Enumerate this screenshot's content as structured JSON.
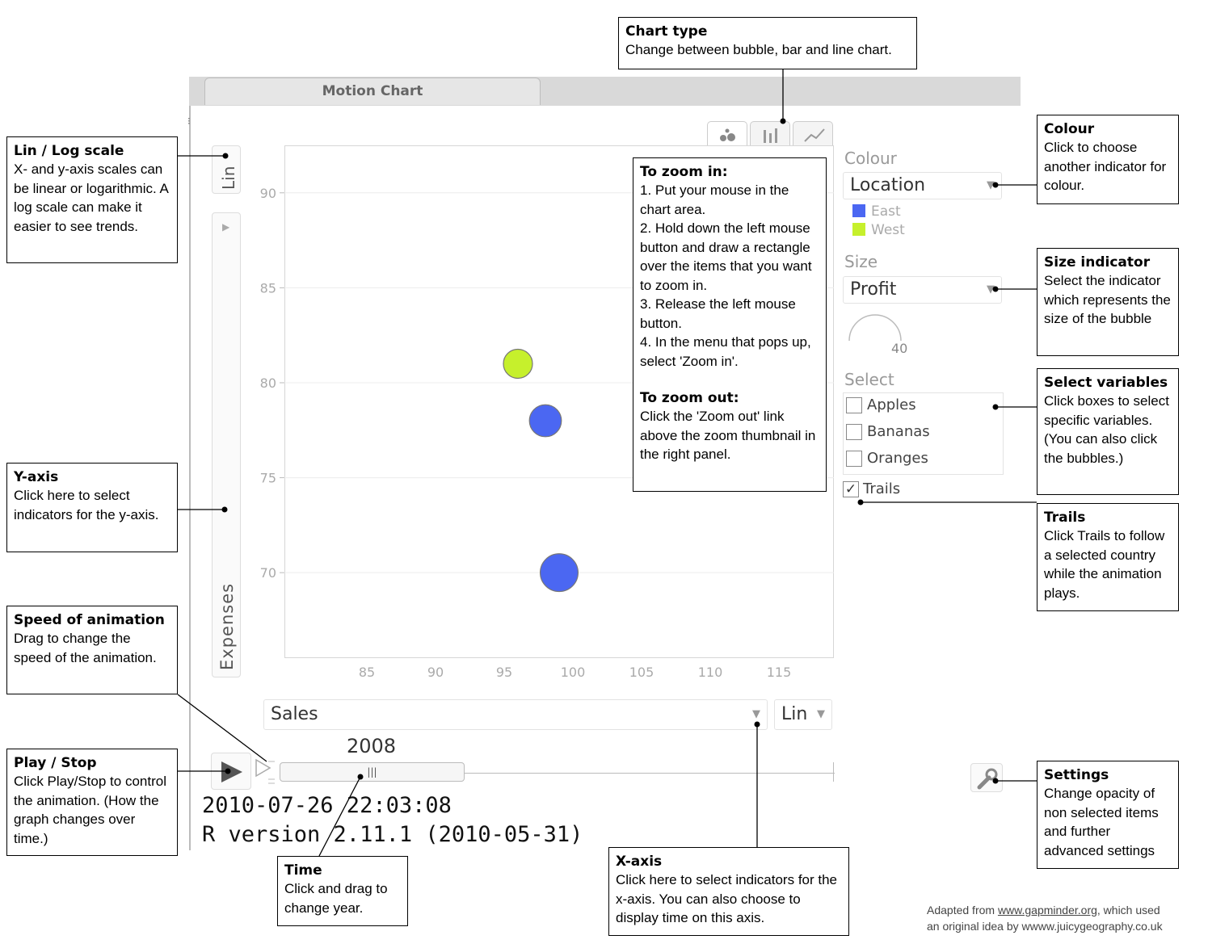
{
  "chart": {
    "tab_title": "Motion Chart",
    "y_scale": "Lin",
    "y_indicator": "Expenses",
    "x_indicator": "Sales",
    "x_scale": "Lin",
    "year": "2008",
    "timestamp": "2010-07-26 22:03:08",
    "r_version": "R version 2.11.1 (2010-05-31)"
  },
  "chart_data": {
    "type": "scatter",
    "x": [
      96,
      98,
      99
    ],
    "y": [
      81,
      78,
      70
    ],
    "colors": [
      "#c6f02c",
      "#4b67f2",
      "#4b67f2"
    ],
    "sizes": [
      1.0,
      1.1,
      1.3
    ],
    "xlim": [
      79,
      119
    ],
    "ylim": [
      65.5,
      92.5
    ],
    "x_ticks": [
      "85",
      "90",
      "95",
      "100",
      "105",
      "110",
      "115"
    ],
    "y_ticks": [
      "90",
      "85",
      "80",
      "75",
      "70"
    ],
    "ylabel": "Expenses",
    "xlabel": "Sales",
    "grid": true
  },
  "panel": {
    "colour_label": "Colour",
    "colour_value": "Location",
    "legend": [
      {
        "name": "East",
        "color": "#4b67f2"
      },
      {
        "name": "West",
        "color": "#c6f02c"
      }
    ],
    "size_label": "Size",
    "size_value": "Profit",
    "size_gauge_value": "40",
    "select_label": "Select",
    "select_items": [
      "Apples",
      "Bananas",
      "Oranges"
    ],
    "trails_label": "Trails",
    "trails_checked": "✓"
  },
  "callouts": {
    "chart_type": {
      "title": "Chart type",
      "body": "Change between bubble, bar and line chart."
    },
    "lin_log": {
      "title": "Lin / Log scale",
      "body": "X- and y-axis scales can be linear or logarithmic. A log scale can make it easier to see trends."
    },
    "y_axis": {
      "title": "Y-axis",
      "body": "Click here to select indicators for the y-axis."
    },
    "speed": {
      "title": "Speed of animation",
      "body": "Drag to change the speed of the animation."
    },
    "play_stop": {
      "title": "Play / Stop",
      "body": "Click Play/Stop to control the animation. (How the graph changes over time.)"
    },
    "time": {
      "title": "Time",
      "body": "Click and drag to change year."
    },
    "x_axis": {
      "title": "X-axis",
      "body": "Click here to select indicators for the x-axis. You can also choose to display time on this axis."
    },
    "colour": {
      "title": "Colour",
      "body": "Click to choose another indicator for colour."
    },
    "size": {
      "title": "Size indicator",
      "body": "Select the indicator which represents the size of the bubble"
    },
    "select": {
      "title": "Select variables",
      "body": "Click boxes to select specific variables. (You can also click the bubbles.)"
    },
    "trails": {
      "title": "Trails",
      "body": "Click Trails to follow a selected country while the animation plays."
    },
    "settings": {
      "title": "Settings",
      "body": "Change opacity of non selected items and further advanced settings"
    },
    "zoom": {
      "in_title": "To zoom in:",
      "in_steps": [
        "1. Put your mouse in the chart area.",
        "2. Hold down the left mouse button and draw a rectangle over the items that you want to zoom in.",
        "3. Release the left mouse button.",
        "4. In the menu that pops up, select 'Zoom in'."
      ],
      "out_title": "To zoom out:",
      "out_body": "Click the 'Zoom out' link above the zoom thumbnail in the right panel."
    }
  },
  "footer": {
    "prefix": "Adapted from ",
    "link": "www.gapminder.org",
    "suffix": ", which used",
    "line2": "an original idea by wwww.juicygeography.co.uk"
  }
}
